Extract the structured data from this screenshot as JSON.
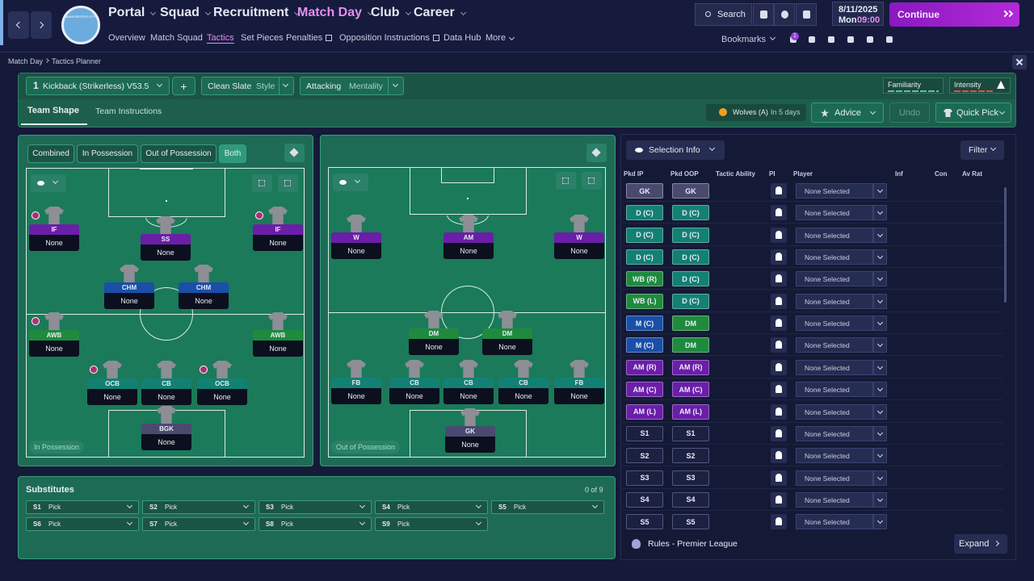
{
  "nav": {
    "menus": [
      "Portal",
      "Squad",
      "Recruitment",
      "Match Day",
      "Club",
      "Career"
    ],
    "subnav": [
      "Overview",
      "Match Squad",
      "Tactics",
      "Set Pieces",
      "Penalties",
      "Opposition Instructions",
      "Data Hub",
      "More"
    ],
    "badge_text": "MANCHESTER CITY",
    "search": "Search",
    "date": "8/11/2025",
    "day": "Mon",
    "time": "09:00",
    "continue": "Continue",
    "bookmarks": "Bookmarks",
    "notification_count": "1"
  },
  "breadcrumb": [
    "Match Day",
    "Tactics Planner"
  ],
  "tactic": {
    "number": "1",
    "name": "Kickback (Strikerless) V53.5",
    "add": "+",
    "style_value": "Clean Slate",
    "style_label": "Style",
    "mentality_value": "Attacking",
    "mentality_label": "Mentality",
    "familiarity": "Familiarity",
    "intensity": "Intensity"
  },
  "tabs": [
    "Team Shape",
    "Team Instructions"
  ],
  "next_match": {
    "opponent": "Wolves (A)",
    "when": "In 5 days"
  },
  "actions": [
    "Advice",
    "Undo",
    "Quick Pick"
  ],
  "shape_filters": [
    "Combined",
    "In Possession",
    "Out of Possession",
    "Both"
  ],
  "pitch_ip": {
    "label": "In Possession",
    "players": [
      {
        "role": "IF",
        "player": "None"
      },
      {
        "role": "SS",
        "player": "None"
      },
      {
        "role": "IF",
        "player": "None"
      },
      {
        "role": "CHM",
        "player": "None"
      },
      {
        "role": "CHM",
        "player": "None"
      },
      {
        "role": "AWB",
        "player": "None"
      },
      {
        "role": "AWB",
        "player": "None"
      },
      {
        "role": "OCB",
        "player": "None"
      },
      {
        "role": "CB",
        "player": "None"
      },
      {
        "role": "OCB",
        "player": "None"
      },
      {
        "role": "BGK",
        "player": "None"
      }
    ]
  },
  "pitch_oop": {
    "label": "Out of Possession",
    "players": [
      {
        "role": "W",
        "player": "None"
      },
      {
        "role": "AM",
        "player": "None"
      },
      {
        "role": "W",
        "player": "None"
      },
      {
        "role": "DM",
        "player": "None"
      },
      {
        "role": "DM",
        "player": "None"
      },
      {
        "role": "FB",
        "player": "None"
      },
      {
        "role": "CB",
        "player": "None"
      },
      {
        "role": "CB",
        "player": "None"
      },
      {
        "role": "CB",
        "player": "None"
      },
      {
        "role": "FB",
        "player": "None"
      },
      {
        "role": "GK",
        "player": "None"
      }
    ]
  },
  "substitutes": {
    "title": "Substitutes",
    "count": "0 of 9",
    "slots": [
      {
        "slot": "S1",
        "value": "Pick"
      },
      {
        "slot": "S2",
        "value": "Pick"
      },
      {
        "slot": "S3",
        "value": "Pick"
      },
      {
        "slot": "S4",
        "value": "Pick"
      },
      {
        "slot": "S5",
        "value": "Pick"
      },
      {
        "slot": "S6",
        "value": "Pick"
      },
      {
        "slot": "S7",
        "value": "Pick"
      },
      {
        "slot": "S8",
        "value": "Pick"
      },
      {
        "slot": "S9",
        "value": "Pick"
      }
    ]
  },
  "selection": {
    "dropdown": "Selection Info",
    "filter": "Filter",
    "columns": [
      "Pkd IP",
      "Pkd OOP",
      "Tactic Ability",
      "PI",
      "Player",
      "Inf",
      "Con",
      "Av Rat"
    ],
    "rows": [
      [
        "GK",
        "GK",
        "None Selected"
      ],
      [
        "D (C)",
        "D (C)",
        "None Selected"
      ],
      [
        "D (C)",
        "D (C)",
        "None Selected"
      ],
      [
        "D (C)",
        "D (C)",
        "None Selected"
      ],
      [
        "WB (R)",
        "D (C)",
        "None Selected"
      ],
      [
        "WB (L)",
        "D (C)",
        "None Selected"
      ],
      [
        "M (C)",
        "DM",
        "None Selected"
      ],
      [
        "M (C)",
        "DM",
        "None Selected"
      ],
      [
        "AM (R)",
        "AM (R)",
        "None Selected"
      ],
      [
        "AM (C)",
        "AM (C)",
        "None Selected"
      ],
      [
        "AM (L)",
        "AM (L)",
        "None Selected"
      ],
      [
        "S1",
        "S1",
        "None Selected"
      ],
      [
        "S2",
        "S2",
        "None Selected"
      ],
      [
        "S3",
        "S3",
        "None Selected"
      ],
      [
        "S4",
        "S4",
        "None Selected"
      ],
      [
        "S5",
        "S5",
        "None Selected"
      ]
    ]
  },
  "footer": {
    "rules": "Rules - Premier League",
    "expand": "Expand"
  }
}
